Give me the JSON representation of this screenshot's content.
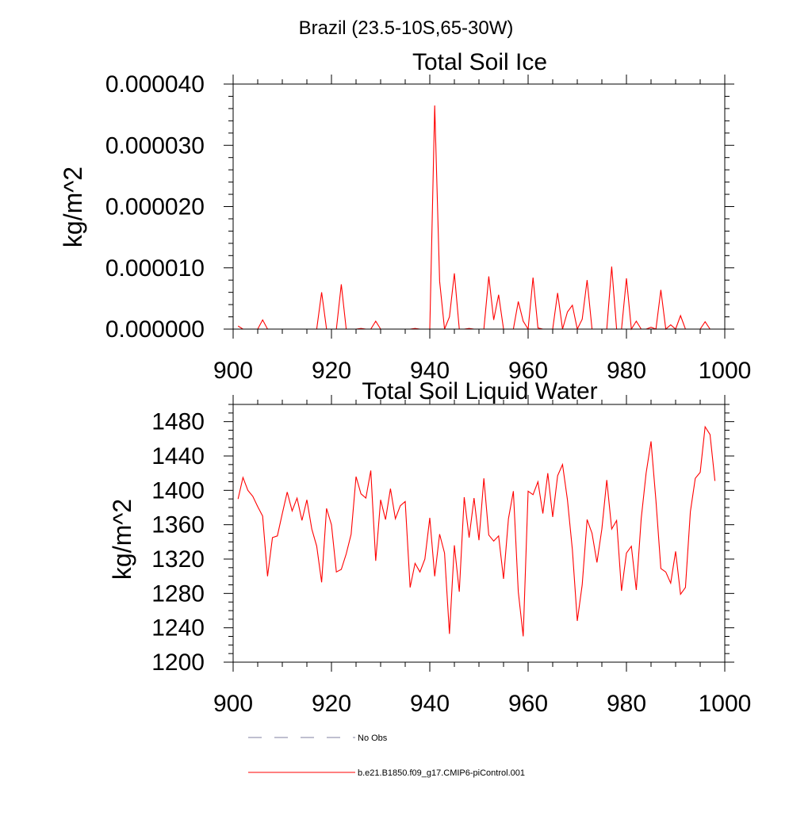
{
  "figure": {
    "title": "Brazil (23.5-10S,65-30W)"
  },
  "colors": {
    "series": "#ff0000",
    "obs": "#7f7fa0",
    "axis": "#000000"
  },
  "legend": {
    "entries": [
      {
        "label": "No Obs",
        "style": "dashed",
        "color": "#7f7fa0"
      },
      {
        "label": "b.e21.B1850.f09_g17.CMIP6-piControl.001",
        "style": "solid",
        "color": "#ff0000"
      }
    ]
  },
  "chart_data": [
    {
      "type": "line",
      "title": "Total Soil Ice",
      "xlabel": "",
      "ylabel": "kg/m^2",
      "xlim": [
        900,
        1000
      ],
      "ylim": [
        0,
        4e-05
      ],
      "xticks": [
        900,
        920,
        940,
        960,
        980,
        1000
      ],
      "xtick_labels": [
        "900",
        "920",
        "940",
        "960",
        "980",
        "1000"
      ],
      "yticks": [
        0,
        1e-05,
        2e-05,
        3e-05,
        4e-05
      ],
      "ytick_labels": [
        "0.000000",
        "0.000010",
        "0.000020",
        "0.000030",
        "0.000040"
      ],
      "legend": "bottom",
      "series": [
        {
          "name": "b.e21.B1850.f09_g17.CMIP6-piControl.001",
          "x_start": 901,
          "values": [
            5e-07,
            0,
            0,
            0,
            0,
            1.5e-06,
            0,
            0,
            0,
            0,
            0,
            0,
            0,
            0,
            0,
            0,
            0,
            6e-06,
            0,
            0,
            0,
            7.3e-06,
            0,
            0,
            0,
            1e-07,
            0,
            0,
            1.3e-06,
            0,
            0,
            0,
            0,
            0,
            0,
            0,
            1e-07,
            0,
            0,
            0,
            3.65e-05,
            7.8e-06,
            0,
            2e-06,
            9.1e-06,
            0,
            0,
            1e-07,
            0,
            0,
            0,
            8.6e-06,
            1.5e-06,
            5.6e-06,
            0,
            0,
            0,
            4.5e-06,
            1.3e-06,
            0,
            8.4e-06,
            2e-07,
            0,
            0,
            0,
            5.9e-06,
            0,
            2.8e-06,
            3.9e-06,
            0,
            1.6e-06,
            8e-06,
            0,
            0,
            0,
            0,
            1.02e-05,
            0,
            0,
            8.3e-06,
            0,
            1.3e-06,
            0,
            0,
            3e-07,
            0,
            6.4e-06,
            0,
            7e-07,
            0,
            2.2e-06,
            0,
            0,
            0,
            0,
            1.2e-06,
            0
          ]
        }
      ]
    },
    {
      "type": "line",
      "title": "Total Soil Liquid Water",
      "xlabel": "",
      "ylabel": "kg/m^2",
      "xlim": [
        900,
        1000
      ],
      "ylim": [
        1200,
        1500
      ],
      "xticks": [
        900,
        920,
        940,
        960,
        980,
        1000
      ],
      "xtick_labels": [
        "900",
        "920",
        "940",
        "960",
        "980",
        "1000"
      ],
      "yticks": [
        1200,
        1240,
        1280,
        1320,
        1360,
        1400,
        1440,
        1480
      ],
      "ytick_labels": [
        "1200",
        "1240",
        "1280",
        "1320",
        "1360",
        "1400",
        "1440",
        "1480"
      ],
      "legend": "bottom",
      "series": [
        {
          "name": "b.e21.B1850.f09_g17.CMIP6-piControl.001",
          "x_start": 901,
          "values": [
            1390,
            1415,
            1400,
            1393,
            1381,
            1370,
            1300,
            1345,
            1347,
            1373,
            1398,
            1376,
            1391,
            1365,
            1389,
            1355,
            1335,
            1293,
            1379,
            1360,
            1305,
            1308,
            1326,
            1349,
            1416,
            1396,
            1391,
            1423,
            1318,
            1389,
            1366,
            1402,
            1367,
            1382,
            1387,
            1287,
            1315,
            1305,
            1320,
            1368,
            1300,
            1349,
            1327,
            1233,
            1336,
            1282,
            1392,
            1345,
            1391,
            1342,
            1414,
            1348,
            1341,
            1347,
            1297,
            1367,
            1399,
            1282,
            1230,
            1399,
            1395,
            1410,
            1373,
            1420,
            1369,
            1417,
            1430,
            1389,
            1331,
            1248,
            1290,
            1366,
            1350,
            1316,
            1355,
            1412,
            1355,
            1365,
            1283,
            1327,
            1335,
            1284,
            1367,
            1420,
            1457,
            1388,
            1309,
            1305,
            1292,
            1329,
            1279,
            1287,
            1375,
            1414,
            1421,
            1474,
            1465,
            1411
          ]
        }
      ]
    }
  ]
}
